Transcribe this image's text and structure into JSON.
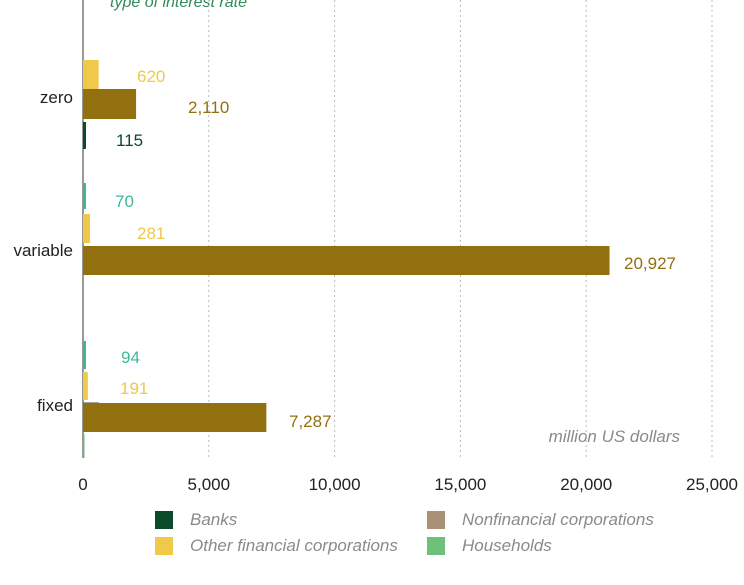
{
  "colors": {
    "banks": "#0b4a2a",
    "nonfinancial": "#a89175",
    "other_financial": "#f0c84a",
    "households": "#6cc079",
    "nonfinancial_bar": "#927010",
    "teal_bar": "#3fb89a",
    "title": "#2f8a5c",
    "grid": "#b8b8b8"
  },
  "chart_data": {
    "type": "bar",
    "orientation": "horizontal",
    "title": "type of interest rate",
    "unit_note": "million US dollars",
    "categories": [
      "zero",
      "variable",
      "fixed"
    ],
    "xlim": [
      0,
      25000
    ],
    "xticks": [
      0,
      5000,
      10000,
      15000,
      20000,
      25000
    ],
    "xtick_labels": [
      "0",
      "5,000",
      "10,000",
      "15,000",
      "20,000",
      "25,000"
    ],
    "grid": "vertical-dotted",
    "legend_position": "bottom",
    "series": [
      {
        "name": "Banks",
        "color": "#0b4a2a",
        "values": [
          115,
          null,
          null
        ],
        "labels": [
          "115",
          "",
          ""
        ]
      },
      {
        "name": "Nonfinancial corporations",
        "color": "#927010",
        "values": [
          2110,
          20927,
          7287
        ],
        "labels": [
          "2,110",
          "20,927",
          "7,287"
        ]
      },
      {
        "name": "Other financial corporations",
        "color": "#f0c84a",
        "values": [
          620,
          281,
          191
        ],
        "labels": [
          "620",
          "281",
          "191"
        ]
      },
      {
        "name": "Households",
        "color": "#3fb89a",
        "values": [
          null,
          70,
          94
        ],
        "labels": [
          "",
          "70",
          "94"
        ]
      }
    ]
  },
  "legend": {
    "items": [
      {
        "label": "Banks",
        "color": "#0b4a2a"
      },
      {
        "label": "Nonfinancial corporations",
        "color": "#a89175"
      },
      {
        "label": "Other financial corporations",
        "color": "#f0c84a"
      },
      {
        "label": "Households",
        "color": "#6cc079"
      }
    ]
  }
}
